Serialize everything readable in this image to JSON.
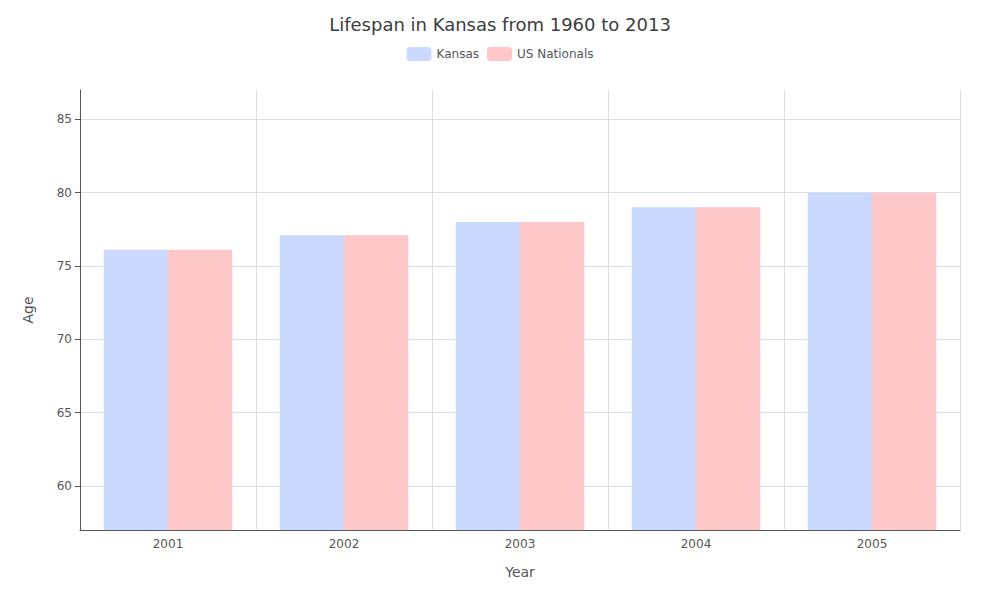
{
  "chart_data": {
    "type": "bar",
    "title": "Lifespan in Kansas from 1960 to 2013",
    "xlabel": "Year",
    "ylabel": "Age",
    "categories": [
      "2001",
      "2002",
      "2003",
      "2004",
      "2005"
    ],
    "series": [
      {
        "name": "Kansas",
        "color": "#ccd9ff",
        "values": [
          76.1,
          77.1,
          78.0,
          79.0,
          80.0
        ]
      },
      {
        "name": "US Nationals",
        "color": "#ffc8c8",
        "values": [
          76.1,
          77.1,
          78.0,
          79.0,
          80.0
        ]
      }
    ],
    "ylim": [
      57,
      87
    ],
    "yticks": [
      60,
      65,
      70,
      75,
      80,
      85
    ],
    "grid": true,
    "legend": "top"
  }
}
